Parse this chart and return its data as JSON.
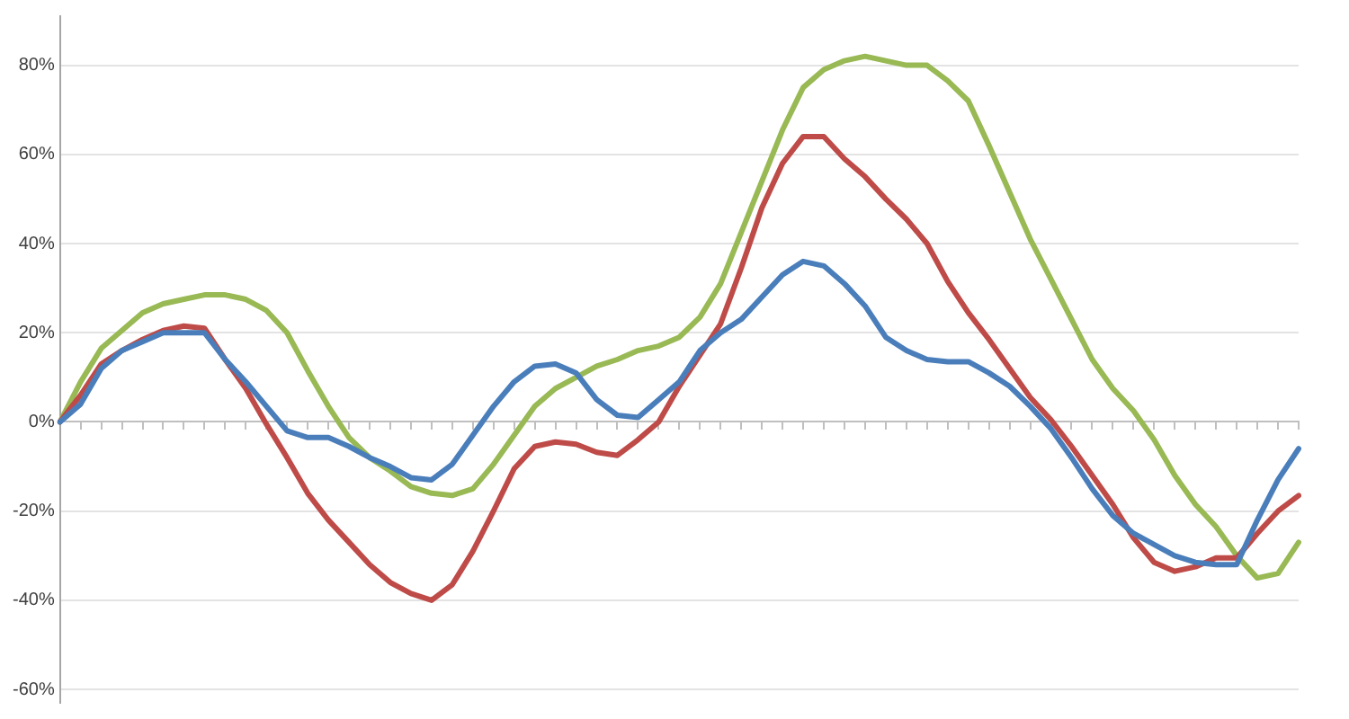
{
  "chart_data": {
    "type": "line",
    "categories": [
      null,
      null,
      null,
      null,
      null,
      null,
      null,
      null,
      null,
      null,
      null,
      null,
      null,
      null,
      null,
      null,
      null,
      null,
      null,
      null,
      null,
      null,
      null,
      null,
      null,
      null,
      null,
      null,
      null,
      null,
      null,
      null,
      null,
      null,
      null,
      null,
      null,
      null,
      null,
      null,
      null,
      null,
      null,
      null,
      null,
      null,
      null,
      null,
      null,
      null,
      null,
      null,
      null,
      null,
      null,
      null,
      null,
      null,
      null,
      null,
      null
    ],
    "series": [
      {
        "color": "#4a7ebb",
        "values": [
          0,
          4,
          12,
          16,
          18,
          20,
          20,
          20,
          14,
          9,
          3.5,
          -2,
          -3.5,
          -3.5,
          -5.5,
          -8,
          -10,
          -12.5,
          -13,
          -9.5,
          -3,
          3.5,
          9,
          12.5,
          13,
          11,
          5,
          1.5,
          1,
          5,
          9,
          16,
          20,
          23,
          28,
          33,
          36,
          35,
          31,
          26,
          19,
          16,
          14,
          13.5,
          13.5,
          11,
          8,
          3.5,
          -1.5,
          -8,
          -15,
          -21,
          -25,
          -27.5,
          -30,
          -31.5,
          -32,
          -32,
          -22,
          -13,
          -6
        ]
      },
      {
        "color": "#be4b48",
        "values": [
          0,
          6,
          13,
          16,
          18.5,
          20.5,
          21.5,
          21,
          14,
          7.5,
          -0.5,
          -8,
          -16,
          -22,
          -27,
          -32,
          -36,
          -38.5,
          -40,
          -36.5,
          -29,
          -20,
          -10.5,
          -5.5,
          -4.5,
          -5,
          -6.8,
          -7.5,
          -4,
          0,
          8,
          15,
          22,
          34.5,
          48,
          58,
          64,
          64,
          59,
          55,
          50,
          45.5,
          40,
          31.5,
          24.5,
          18.5,
          12,
          5.5,
          0.5,
          -5.5,
          -12,
          -18.5,
          -26,
          -31.5,
          -33.5,
          -32.5,
          -30.5,
          -30.5,
          -25,
          -20,
          -16.5
        ]
      },
      {
        "color": "#98b954",
        "values": [
          0,
          9,
          16.5,
          20.5,
          24.5,
          26.5,
          27.5,
          28.5,
          28.5,
          27.5,
          25,
          20,
          11.5,
          3.5,
          -3.5,
          -8,
          -11,
          -14.5,
          -16,
          -16.5,
          -15,
          -9.5,
          -3,
          3.5,
          7.5,
          10,
          12.5,
          14,
          16,
          17,
          19,
          23.5,
          31,
          42.5,
          54,
          65.5,
          75,
          79,
          81,
          82,
          81,
          80,
          80,
          76.5,
          72,
          62,
          51.5,
          41,
          32,
          23,
          14,
          7.5,
          2.5,
          -4,
          -12,
          -18.5,
          -23.5,
          -30,
          -35,
          -34,
          -27
        ]
      }
    ],
    "ylim": [
      -63,
      91
    ],
    "yticks": [
      {
        "value": -60,
        "label": "-60%"
      },
      {
        "value": -40,
        "label": "-40%"
      },
      {
        "value": -20,
        "label": "-20%"
      },
      {
        "value": 0,
        "label": "0%"
      },
      {
        "value": 20,
        "label": "20%"
      },
      {
        "value": 40,
        "label": "40%"
      },
      {
        "value": 60,
        "label": "60%"
      },
      {
        "value": 80,
        "label": "80%"
      }
    ],
    "grid": "y",
    "legend": false,
    "tick_labels": "y",
    "marker": "none",
    "line_style": "solid"
  }
}
